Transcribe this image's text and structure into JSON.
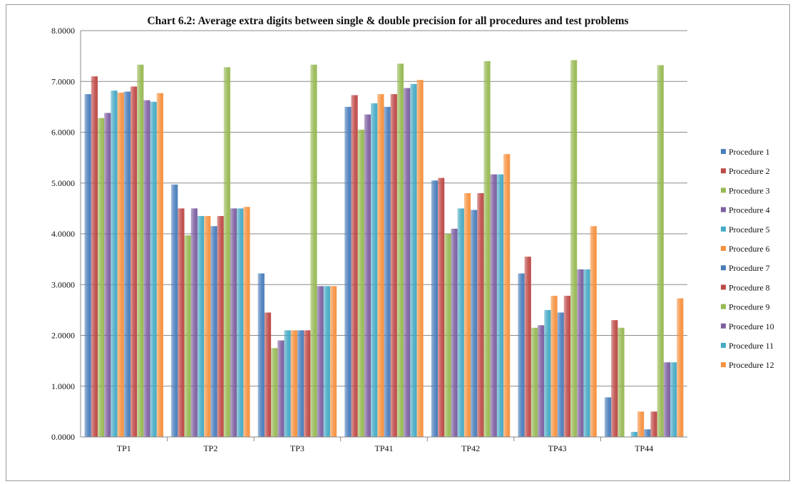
{
  "chart_data": {
    "type": "bar",
    "title": "Chart 6.2: Average extra digits between single & double precision for all procedures and test problems",
    "xlabel": "",
    "ylabel": "",
    "ylim": [
      0,
      8
    ],
    "yticks": [
      "0.0000",
      "1.0000",
      "2.0000",
      "3.0000",
      "4.0000",
      "5.0000",
      "6.0000",
      "7.0000",
      "8.0000"
    ],
    "grid": true,
    "legend_position": "right",
    "categories": [
      "TP1",
      "TP2",
      "TP3",
      "TP41",
      "TP42",
      "TP43",
      "TP44"
    ],
    "series": [
      {
        "name": "Procedure 1",
        "color": "#4a7ebb",
        "values": [
          6.75,
          4.97,
          3.22,
          6.5,
          5.05,
          3.22,
          0.78
        ]
      },
      {
        "name": "Procedure 2",
        "color": "#be4b48",
        "values": [
          7.1,
          4.5,
          2.45,
          6.73,
          5.1,
          3.55,
          2.3
        ]
      },
      {
        "name": "Procedure 3",
        "color": "#98b954",
        "values": [
          6.28,
          3.97,
          1.75,
          6.05,
          4.0,
          2.15,
          2.15
        ]
      },
      {
        "name": "Procedure 4",
        "color": "#7d60a0",
        "values": [
          6.38,
          4.5,
          1.9,
          6.35,
          4.1,
          2.2,
          0.0
        ]
      },
      {
        "name": "Procedure 5",
        "color": "#46aac5",
        "values": [
          6.82,
          4.35,
          2.1,
          6.57,
          4.5,
          2.5,
          0.1
        ]
      },
      {
        "name": "Procedure 6",
        "color": "#f69240",
        "values": [
          6.78,
          4.35,
          2.1,
          6.75,
          4.8,
          2.78,
          0.5
        ]
      },
      {
        "name": "Procedure 7",
        "color": "#4a7ebb",
        "values": [
          6.8,
          4.15,
          2.1,
          6.5,
          4.47,
          2.45,
          0.15
        ]
      },
      {
        "name": "Procedure 8",
        "color": "#be4b48",
        "values": [
          6.9,
          4.35,
          2.1,
          6.75,
          4.8,
          2.78,
          0.5
        ]
      },
      {
        "name": "Procedure 9",
        "color": "#98b954",
        "values": [
          7.33,
          7.28,
          7.33,
          7.35,
          7.4,
          7.42,
          7.32
        ]
      },
      {
        "name": "Procedure 10",
        "color": "#7d60a0",
        "values": [
          6.63,
          4.5,
          2.97,
          6.87,
          5.17,
          3.3,
          1.47
        ]
      },
      {
        "name": "Procedure 11",
        "color": "#46aac5",
        "values": [
          6.6,
          4.5,
          2.97,
          6.95,
          5.17,
          3.3,
          1.47
        ]
      },
      {
        "name": "Procedure 12",
        "color": "#f69240",
        "values": [
          6.77,
          4.53,
          2.97,
          7.03,
          5.57,
          4.15,
          2.73
        ]
      }
    ]
  }
}
